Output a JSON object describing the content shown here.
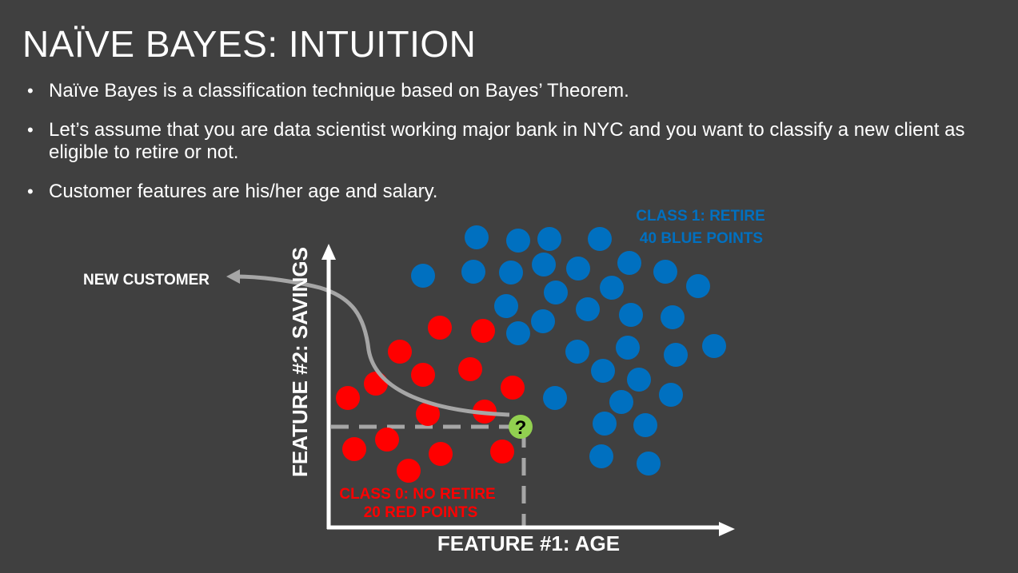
{
  "slide": {
    "title": "NAÏVE BAYES: INTUITION",
    "bullets": [
      "Naïve Bayes is a classification technique based on Bayes’ Theorem.",
      "Let’s assume that you are data scientist working major bank in NYC and you want to classify a new client as eligible to retire or not.",
      "Customer features are his/her age and salary."
    ]
  },
  "diagram": {
    "x_axis_label": "FEATURE #1: AGE",
    "y_axis_label": "FEATURE #2: SAVINGS",
    "new_customer_label": "NEW CUSTOMER",
    "new_customer_marker": "?",
    "class1_line1": "CLASS 1: RETIRE",
    "class1_line2": "40 BLUE POINTS",
    "class0_line1": "CLASS 0: NO RETIRE",
    "class0_line2": "20 RED POINTS",
    "colors": {
      "background": "#404040",
      "blue": "#0070C0",
      "red": "#FF0000",
      "new_point": "#92D050",
      "guide": "#A6A6A6"
    }
  }
}
